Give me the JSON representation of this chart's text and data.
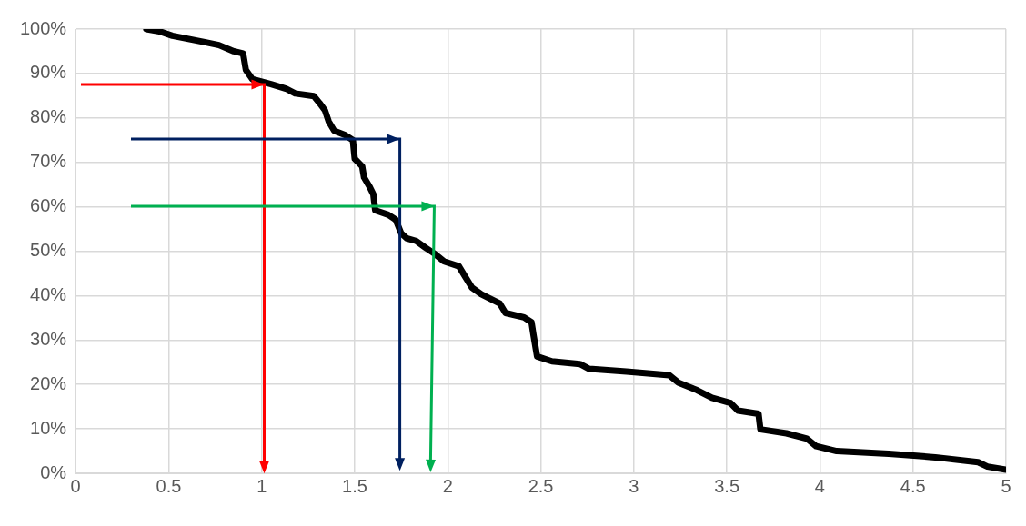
{
  "chart_data": {
    "type": "line",
    "xlim": [
      0,
      5
    ],
    "xticks": [
      0,
      0.5,
      1,
      1.5,
      2,
      2.5,
      3,
      3.5,
      4,
      4.5,
      5
    ],
    "ylim": [
      0,
      100
    ],
    "yticks": [
      {
        "value": 0,
        "label": "0%"
      },
      {
        "value": 10,
        "label": "10%"
      },
      {
        "value": 20,
        "label": "20%"
      },
      {
        "value": 30,
        "label": "30%"
      },
      {
        "value": 40,
        "label": "40%"
      },
      {
        "value": 50,
        "label": "50%"
      },
      {
        "value": 60,
        "label": "60%"
      },
      {
        "value": 70,
        "label": "70%"
      },
      {
        "value": 80,
        "label": "80%"
      },
      {
        "value": 90,
        "label": "90%"
      },
      {
        "value": 100,
        "label": "100%"
      }
    ],
    "grid": true,
    "legend": false,
    "marker": "none",
    "line_style": "solid",
    "series": [
      {
        "color": "#000000",
        "x": [
          0.38,
          0.45,
          0.52,
          0.7,
          0.77,
          0.85,
          0.9,
          0.915,
          0.95,
          1.05,
          1.13,
          1.18,
          1.28,
          1.31,
          1.34,
          1.36,
          1.39,
          1.45,
          1.49,
          1.5,
          1.54,
          1.55,
          1.58,
          1.6,
          1.61,
          1.68,
          1.72,
          1.75,
          1.78,
          1.83,
          1.88,
          1.93,
          1.98,
          2.06,
          2.09,
          2.13,
          2.18,
          2.28,
          2.31,
          2.41,
          2.45,
          2.46,
          2.47,
          2.48,
          2.56,
          2.71,
          2.76,
          2.96,
          3.19,
          3.24,
          3.34,
          3.42,
          3.52,
          3.56,
          3.67,
          3.68,
          3.82,
          3.93,
          3.98,
          4.09,
          4.37,
          4.62,
          4.85,
          4.9,
          5
        ],
        "values": [
          100,
          99.5,
          98.5,
          97,
          96.4,
          95,
          94.5,
          90.8,
          88.7,
          87.6,
          86.6,
          85.5,
          84.9,
          83.4,
          81.7,
          79.2,
          77.1,
          76.1,
          75,
          70.8,
          69.1,
          66.6,
          64.5,
          62.8,
          59.2,
          58.2,
          57.1,
          54,
          52.9,
          52.3,
          50.8,
          49.4,
          47.7,
          46.6,
          44.5,
          41.8,
          40.3,
          38.2,
          36.1,
          35.1,
          34,
          31.3,
          28.8,
          26.3,
          25.2,
          24.6,
          23.5,
          22.9,
          22.1,
          20.4,
          18.7,
          17,
          15.8,
          14.1,
          13.4,
          9.9,
          9,
          7.8,
          6.1,
          5,
          4.4,
          3.6,
          2.5,
          1.5,
          0.8
        ]
      }
    ]
  }
}
